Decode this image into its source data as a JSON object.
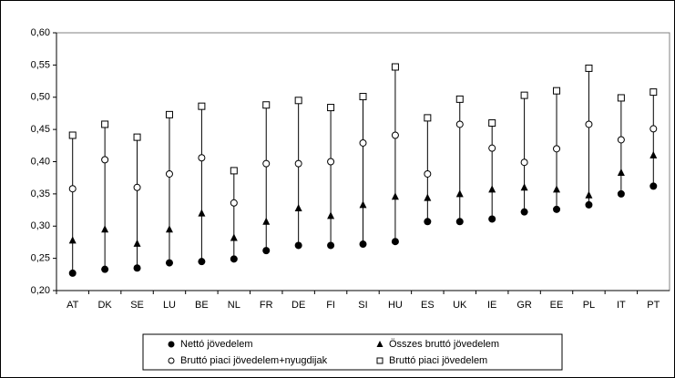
{
  "chart_data": {
    "type": "range-dot",
    "categories": [
      "AT",
      "DK",
      "SE",
      "LU",
      "BE",
      "NL",
      "FR",
      "DE",
      "FI",
      "SI",
      "HU",
      "ES",
      "UK",
      "IE",
      "GR",
      "EE",
      "PL",
      "IT",
      "PT"
    ],
    "series": [
      {
        "name": "Nettó jövedelem",
        "color": "#000000",
        "marker": "circle-filled",
        "values": [
          0.227,
          0.233,
          0.235,
          0.243,
          0.245,
          0.249,
          0.262,
          0.27,
          0.27,
          0.272,
          0.276,
          0.307,
          0.307,
          0.311,
          0.322,
          0.326,
          0.333,
          0.35,
          0.362
        ]
      },
      {
        "name": "Összes bruttó jövedelem",
        "color": "#000000",
        "marker": "triangle-filled",
        "values": [
          0.278,
          0.295,
          0.273,
          0.295,
          0.32,
          0.282,
          0.307,
          0.328,
          0.316,
          0.333,
          0.346,
          0.344,
          0.35,
          0.357,
          0.36,
          0.357,
          0.348,
          0.383,
          0.41
        ]
      },
      {
        "name": "Bruttó piaci jövedelem+nyugdijak",
        "color": "#000000",
        "marker": "circle-open",
        "values": [
          0.358,
          0.403,
          0.36,
          0.381,
          0.406,
          0.336,
          0.397,
          0.397,
          0.4,
          0.429,
          0.441,
          0.381,
          0.458,
          0.421,
          0.399,
          0.42,
          0.458,
          0.434,
          0.451
        ]
      },
      {
        "name": "Bruttó piaci jövedelem",
        "color": "#000000",
        "marker": "square-open",
        "values": [
          0.441,
          0.458,
          0.438,
          0.473,
          0.486,
          0.386,
          0.488,
          0.495,
          0.484,
          0.501,
          0.547,
          0.468,
          0.497,
          0.46,
          0.503,
          0.51,
          0.545,
          0.499,
          0.508
        ]
      }
    ],
    "ylim": [
      0.2,
      0.6
    ],
    "yticks": [
      {
        "value": 0.2,
        "label": "0,20"
      },
      {
        "value": 0.25,
        "label": "0,25"
      },
      {
        "value": 0.3,
        "label": "0,30"
      },
      {
        "value": 0.35,
        "label": "0,35"
      },
      {
        "value": 0.4,
        "label": "0,40"
      },
      {
        "value": 0.45,
        "label": "0,45"
      },
      {
        "value": 0.5,
        "label": "0,50"
      },
      {
        "value": 0.55,
        "label": "0,55"
      },
      {
        "value": 0.6,
        "label": "0,60"
      }
    ],
    "grid": false,
    "legend": "bottom"
  }
}
